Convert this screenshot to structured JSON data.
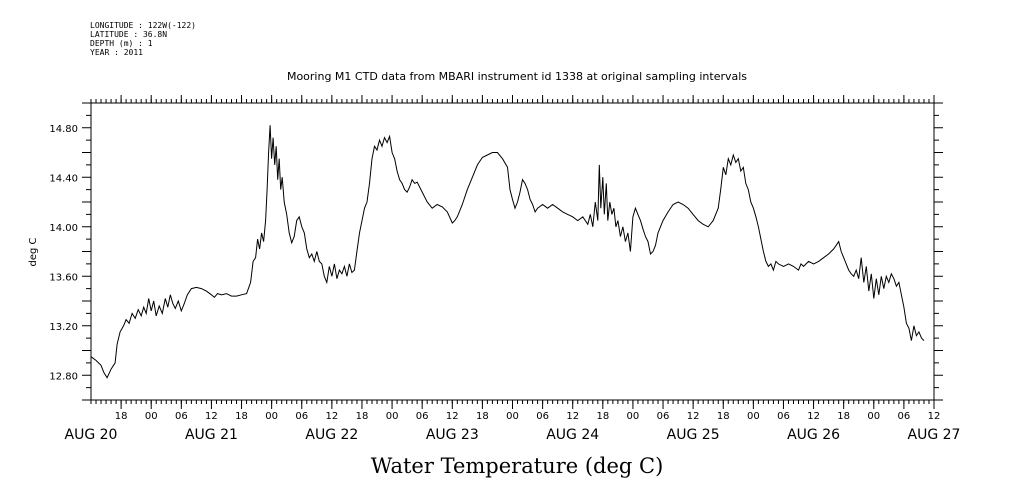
{
  "meta": {
    "longitude": "LONGITUDE : 122W(-122)",
    "latitude": "LATITUDE : 36.8N",
    "depth": "DEPTH (m) : 1",
    "year": "YEAR : 2011"
  },
  "chart_data": {
    "type": "line",
    "title": "Mooring M1 CTD data from MBARI instrument id 1338 at original sampling intervals",
    "xlabel": "Water Temperature (deg C)",
    "ylabel": "deg C",
    "ylim": [
      12.6,
      15.0
    ],
    "y_ticks": [
      "12.80",
      "13.20",
      "13.60",
      "14.00",
      "14.40",
      "14.80"
    ],
    "x_unit": "hours since 2011-08-20 00:00",
    "xlim": [
      12,
      180
    ],
    "x_hour_ticks": [
      {
        "hour": 18,
        "label": "18"
      },
      {
        "hour": 24,
        "label": "00"
      },
      {
        "hour": 30,
        "label": "06"
      },
      {
        "hour": 36,
        "label": "12"
      },
      {
        "hour": 42,
        "label": "18"
      },
      {
        "hour": 48,
        "label": "00"
      },
      {
        "hour": 54,
        "label": "06"
      },
      {
        "hour": 60,
        "label": "12"
      },
      {
        "hour": 66,
        "label": "18"
      },
      {
        "hour": 72,
        "label": "00"
      },
      {
        "hour": 78,
        "label": "06"
      },
      {
        "hour": 84,
        "label": "12"
      },
      {
        "hour": 90,
        "label": "18"
      },
      {
        "hour": 96,
        "label": "00"
      },
      {
        "hour": 102,
        "label": "06"
      },
      {
        "hour": 108,
        "label": "12"
      },
      {
        "hour": 114,
        "label": "18"
      },
      {
        "hour": 120,
        "label": "00"
      },
      {
        "hour": 126,
        "label": "06"
      },
      {
        "hour": 132,
        "label": "12"
      },
      {
        "hour": 138,
        "label": "18"
      },
      {
        "hour": 144,
        "label": "00"
      },
      {
        "hour": 150,
        "label": "06"
      },
      {
        "hour": 156,
        "label": "12"
      },
      {
        "hour": 162,
        "label": "18"
      },
      {
        "hour": 168,
        "label": "00"
      },
      {
        "hour": 174,
        "label": "06"
      },
      {
        "hour": 180,
        "label": "12"
      }
    ],
    "x_date_labels": [
      {
        "hour": 12,
        "label": "AUG 20"
      },
      {
        "hour": 36,
        "label": "AUG 21"
      },
      {
        "hour": 60,
        "label": "AUG 22"
      },
      {
        "hour": 84,
        "label": "AUG 23"
      },
      {
        "hour": 108,
        "label": "AUG 24"
      },
      {
        "hour": 132,
        "label": "AUG 25"
      },
      {
        "hour": 156,
        "label": "AUG 26"
      },
      {
        "hour": 180,
        "label": "AUG 27"
      }
    ],
    "series": [
      {
        "color": "#000000",
        "points": [
          [
            12.0,
            12.95
          ],
          [
            13.0,
            12.92
          ],
          [
            14.0,
            12.88
          ],
          [
            14.6,
            12.82
          ],
          [
            15.2,
            12.78
          ],
          [
            16.0,
            12.85
          ],
          [
            16.8,
            12.9
          ],
          [
            17.2,
            13.05
          ],
          [
            17.8,
            13.15
          ],
          [
            18.5,
            13.2
          ],
          [
            19.0,
            13.25
          ],
          [
            19.6,
            13.22
          ],
          [
            20.2,
            13.3
          ],
          [
            20.8,
            13.26
          ],
          [
            21.4,
            13.33
          ],
          [
            22.0,
            13.28
          ],
          [
            22.5,
            13.35
          ],
          [
            23.0,
            13.3
          ],
          [
            23.5,
            13.42
          ],
          [
            24.0,
            13.32
          ],
          [
            24.5,
            13.4
          ],
          [
            25.0,
            13.28
          ],
          [
            25.6,
            13.36
          ],
          [
            26.2,
            13.3
          ],
          [
            26.8,
            13.42
          ],
          [
            27.3,
            13.35
          ],
          [
            27.8,
            13.45
          ],
          [
            28.3,
            13.38
          ],
          [
            28.8,
            13.34
          ],
          [
            29.4,
            13.4
          ],
          [
            30.0,
            13.32
          ],
          [
            30.6,
            13.38
          ],
          [
            31.2,
            13.45
          ],
          [
            32.0,
            13.5
          ],
          [
            33.0,
            13.51
          ],
          [
            34.0,
            13.5
          ],
          [
            35.0,
            13.48
          ],
          [
            36.0,
            13.45
          ],
          [
            36.6,
            13.43
          ],
          [
            37.2,
            13.46
          ],
          [
            38.0,
            13.45
          ],
          [
            39.0,
            13.46
          ],
          [
            40.0,
            13.44
          ],
          [
            41.0,
            13.44
          ],
          [
            42.0,
            13.45
          ],
          [
            43.0,
            13.46
          ],
          [
            43.8,
            13.55
          ],
          [
            44.3,
            13.72
          ],
          [
            44.8,
            13.75
          ],
          [
            45.2,
            13.9
          ],
          [
            45.6,
            13.82
          ],
          [
            46.0,
            13.95
          ],
          [
            46.4,
            13.88
          ],
          [
            46.8,
            14.05
          ],
          [
            47.1,
            14.3
          ],
          [
            47.4,
            14.6
          ],
          [
            47.7,
            14.82
          ],
          [
            48.0,
            14.55
          ],
          [
            48.3,
            14.72
          ],
          [
            48.6,
            14.5
          ],
          [
            48.9,
            14.65
          ],
          [
            49.2,
            14.38
          ],
          [
            49.5,
            14.55
          ],
          [
            49.8,
            14.3
          ],
          [
            50.1,
            14.4
          ],
          [
            50.5,
            14.2
          ],
          [
            51.0,
            14.1
          ],
          [
            51.5,
            13.95
          ],
          [
            52.0,
            13.87
          ],
          [
            52.5,
            13.92
          ],
          [
            53.0,
            14.05
          ],
          [
            53.5,
            14.08
          ],
          [
            54.0,
            14.0
          ],
          [
            54.5,
            13.95
          ],
          [
            55.0,
            13.82
          ],
          [
            55.5,
            13.75
          ],
          [
            56.0,
            13.78
          ],
          [
            56.5,
            13.72
          ],
          [
            57.0,
            13.8
          ],
          [
            57.5,
            13.72
          ],
          [
            58.0,
            13.7
          ],
          [
            58.5,
            13.6
          ],
          [
            59.0,
            13.55
          ],
          [
            59.5,
            13.68
          ],
          [
            60.0,
            13.6
          ],
          [
            60.5,
            13.7
          ],
          [
            61.0,
            13.58
          ],
          [
            61.5,
            13.65
          ],
          [
            62.0,
            13.62
          ],
          [
            62.5,
            13.68
          ],
          [
            63.0,
            13.6
          ],
          [
            63.5,
            13.7
          ],
          [
            64.0,
            13.63
          ],
          [
            64.5,
            13.65
          ],
          [
            65.0,
            13.8
          ],
          [
            65.5,
            13.95
          ],
          [
            66.0,
            14.05
          ],
          [
            66.5,
            14.15
          ],
          [
            67.0,
            14.2
          ],
          [
            67.5,
            14.35
          ],
          [
            68.0,
            14.55
          ],
          [
            68.5,
            14.65
          ],
          [
            69.0,
            14.62
          ],
          [
            69.5,
            14.7
          ],
          [
            70.0,
            14.65
          ],
          [
            70.5,
            14.72
          ],
          [
            71.0,
            14.68
          ],
          [
            71.5,
            14.73
          ],
          [
            72.0,
            14.6
          ],
          [
            72.5,
            14.55
          ],
          [
            73.0,
            14.45
          ],
          [
            73.5,
            14.38
          ],
          [
            74.0,
            14.35
          ],
          [
            74.5,
            14.3
          ],
          [
            75.0,
            14.28
          ],
          [
            75.5,
            14.32
          ],
          [
            76.0,
            14.38
          ],
          [
            76.5,
            14.35
          ],
          [
            77.0,
            14.36
          ],
          [
            77.5,
            14.32
          ],
          [
            78.0,
            14.28
          ],
          [
            79.0,
            14.2
          ],
          [
            80.0,
            14.15
          ],
          [
            81.0,
            14.18
          ],
          [
            82.0,
            14.16
          ],
          [
            83.0,
            14.12
          ],
          [
            84.0,
            14.03
          ],
          [
            84.5,
            14.05
          ],
          [
            85.0,
            14.08
          ],
          [
            86.0,
            14.18
          ],
          [
            87.0,
            14.3
          ],
          [
            88.0,
            14.4
          ],
          [
            89.0,
            14.5
          ],
          [
            90.0,
            14.56
          ],
          [
            91.0,
            14.58
          ],
          [
            92.0,
            14.6
          ],
          [
            93.0,
            14.6
          ],
          [
            94.0,
            14.55
          ],
          [
            95.0,
            14.48
          ],
          [
            95.5,
            14.3
          ],
          [
            96.0,
            14.22
          ],
          [
            96.5,
            14.15
          ],
          [
            97.0,
            14.2
          ],
          [
            97.5,
            14.28
          ],
          [
            98.0,
            14.38
          ],
          [
            98.5,
            14.35
          ],
          [
            99.0,
            14.3
          ],
          [
            99.5,
            14.22
          ],
          [
            100.0,
            14.18
          ],
          [
            100.5,
            14.12
          ],
          [
            101.0,
            14.15
          ],
          [
            102.0,
            14.18
          ],
          [
            103.0,
            14.15
          ],
          [
            104.0,
            14.18
          ],
          [
            105.0,
            14.15
          ],
          [
            106.0,
            14.12
          ],
          [
            107.0,
            14.1
          ],
          [
            108.0,
            14.08
          ],
          [
            109.0,
            14.05
          ],
          [
            110.0,
            14.08
          ],
          [
            111.0,
            14.02
          ],
          [
            111.5,
            14.1
          ],
          [
            112.0,
            14.0
          ],
          [
            112.5,
            14.2
          ],
          [
            113.0,
            14.05
          ],
          [
            113.3,
            14.5
          ],
          [
            113.6,
            14.15
          ],
          [
            114.0,
            14.4
          ],
          [
            114.3,
            14.1
          ],
          [
            114.7,
            14.35
          ],
          [
            115.0,
            14.05
          ],
          [
            115.4,
            14.2
          ],
          [
            115.8,
            14.1
          ],
          [
            116.2,
            14.15
          ],
          [
            116.6,
            14.0
          ],
          [
            117.0,
            14.05
          ],
          [
            117.5,
            13.92
          ],
          [
            118.0,
            14.0
          ],
          [
            118.5,
            13.88
          ],
          [
            119.0,
            13.95
          ],
          [
            119.5,
            13.8
          ],
          [
            120.0,
            14.08
          ],
          [
            120.5,
            14.15
          ],
          [
            121.0,
            14.1
          ],
          [
            121.5,
            14.05
          ],
          [
            122.0,
            13.98
          ],
          [
            122.5,
            13.92
          ],
          [
            123.0,
            13.88
          ],
          [
            123.5,
            13.78
          ],
          [
            124.0,
            13.8
          ],
          [
            124.5,
            13.85
          ],
          [
            125.0,
            13.95
          ],
          [
            126.0,
            14.05
          ],
          [
            127.0,
            14.12
          ],
          [
            128.0,
            14.18
          ],
          [
            129.0,
            14.2
          ],
          [
            130.0,
            14.18
          ],
          [
            131.0,
            14.15
          ],
          [
            132.0,
            14.1
          ],
          [
            133.0,
            14.05
          ],
          [
            134.0,
            14.02
          ],
          [
            135.0,
            14.0
          ],
          [
            136.0,
            14.05
          ],
          [
            137.0,
            14.15
          ],
          [
            137.5,
            14.3
          ],
          [
            138.0,
            14.48
          ],
          [
            138.5,
            14.42
          ],
          [
            139.0,
            14.55
          ],
          [
            139.5,
            14.5
          ],
          [
            140.0,
            14.58
          ],
          [
            140.5,
            14.52
          ],
          [
            141.0,
            14.55
          ],
          [
            141.5,
            14.45
          ],
          [
            142.0,
            14.48
          ],
          [
            142.5,
            14.35
          ],
          [
            143.0,
            14.3
          ],
          [
            143.5,
            14.2
          ],
          [
            144.0,
            14.15
          ],
          [
            144.5,
            14.08
          ],
          [
            145.0,
            14.0
          ],
          [
            145.5,
            13.9
          ],
          [
            146.0,
            13.8
          ],
          [
            146.5,
            13.72
          ],
          [
            147.0,
            13.68
          ],
          [
            147.5,
            13.7
          ],
          [
            148.0,
            13.65
          ],
          [
            148.5,
            13.72
          ],
          [
            149.0,
            13.7
          ],
          [
            150.0,
            13.68
          ],
          [
            151.0,
            13.7
          ],
          [
            152.0,
            13.68
          ],
          [
            153.0,
            13.65
          ],
          [
            153.5,
            13.7
          ],
          [
            154.0,
            13.68
          ],
          [
            155.0,
            13.72
          ],
          [
            156.0,
            13.7
          ],
          [
            157.0,
            13.72
          ],
          [
            158.0,
            13.75
          ],
          [
            159.0,
            13.78
          ],
          [
            160.0,
            13.82
          ],
          [
            160.5,
            13.85
          ],
          [
            161.0,
            13.88
          ],
          [
            161.5,
            13.8
          ],
          [
            162.0,
            13.75
          ],
          [
            162.5,
            13.7
          ],
          [
            163.0,
            13.65
          ],
          [
            163.5,
            13.62
          ],
          [
            164.0,
            13.6
          ],
          [
            164.5,
            13.65
          ],
          [
            165.0,
            13.58
          ],
          [
            165.5,
            13.75
          ],
          [
            166.0,
            13.55
          ],
          [
            166.5,
            13.68
          ],
          [
            167.0,
            13.48
          ],
          [
            167.5,
            13.62
          ],
          [
            168.0,
            13.42
          ],
          [
            168.5,
            13.58
          ],
          [
            169.0,
            13.45
          ],
          [
            169.5,
            13.6
          ],
          [
            170.0,
            13.5
          ],
          [
            170.5,
            13.6
          ],
          [
            171.0,
            13.55
          ],
          [
            171.5,
            13.62
          ],
          [
            172.0,
            13.58
          ],
          [
            172.5,
            13.52
          ],
          [
            173.0,
            13.55
          ],
          [
            173.5,
            13.45
          ],
          [
            174.0,
            13.35
          ],
          [
            174.5,
            13.22
          ],
          [
            175.0,
            13.18
          ],
          [
            175.5,
            13.08
          ],
          [
            176.0,
            13.2
          ],
          [
            176.5,
            13.12
          ],
          [
            177.0,
            13.15
          ],
          [
            177.5,
            13.1
          ],
          [
            178.0,
            13.08
          ]
        ]
      }
    ]
  }
}
